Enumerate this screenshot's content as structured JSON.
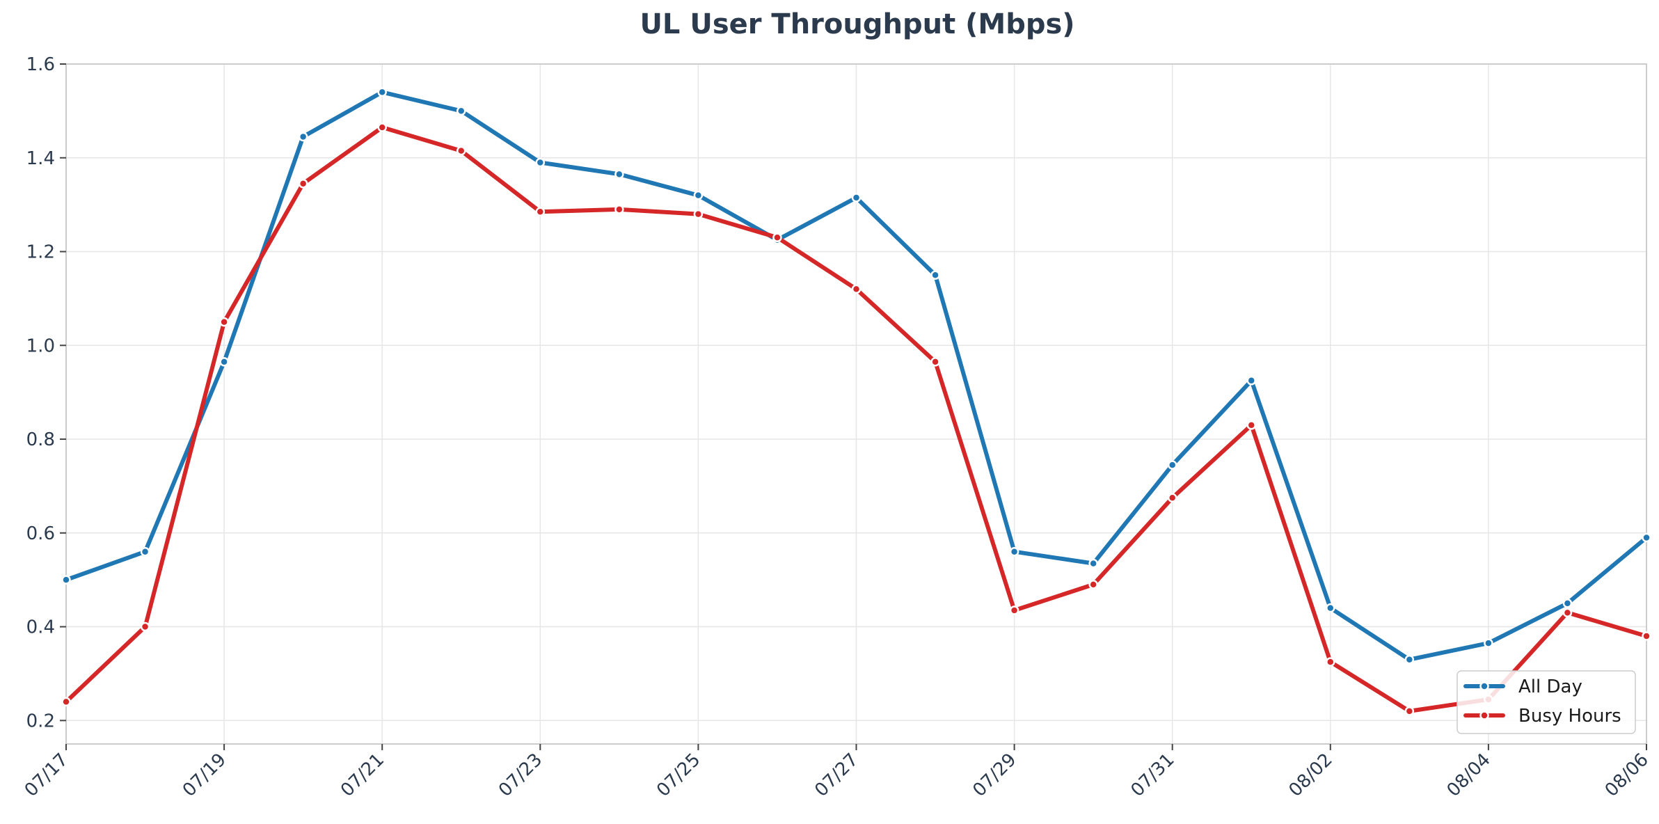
{
  "chart_data": {
    "type": "line",
    "title": "UL User Throughput (Mbps)",
    "xlabel": "",
    "ylabel": "",
    "x": [
      "07/17",
      "07/18",
      "07/19",
      "07/20",
      "07/21",
      "07/22",
      "07/23",
      "07/24",
      "07/25",
      "07/26",
      "07/27",
      "07/28",
      "07/29",
      "07/30",
      "07/31",
      "08/01",
      "08/02",
      "08/03",
      "08/04",
      "08/05",
      "08/06"
    ],
    "x_tick_labels": [
      "07/17",
      "07/19",
      "07/21",
      "07/23",
      "07/25",
      "07/27",
      "07/29",
      "07/31",
      "08/02",
      "08/04",
      "08/06"
    ],
    "ylim": [
      0.15,
      1.6
    ],
    "y_ticks": [
      0.2,
      0.4,
      0.6,
      0.8,
      1.0,
      1.2,
      1.4,
      1.6
    ],
    "y_tick_labels": [
      "0.2",
      "0.4",
      "0.6",
      "0.8",
      "1.0",
      "1.2",
      "1.4",
      "1.6"
    ],
    "grid": true,
    "legend_position": "bottom-right",
    "series": [
      {
        "name": "All Day",
        "color": "#1f77b4",
        "values": [
          0.5,
          0.56,
          0.965,
          1.445,
          1.54,
          1.5,
          1.39,
          1.365,
          1.32,
          1.225,
          1.315,
          1.15,
          0.56,
          0.535,
          0.745,
          0.925,
          0.44,
          0.33,
          0.365,
          0.45,
          0.59
        ]
      },
      {
        "name": "Busy Hours",
        "color": "#d62728",
        "values": [
          0.24,
          0.4,
          1.05,
          1.345,
          1.465,
          1.415,
          1.285,
          1.29,
          1.28,
          1.23,
          1.12,
          0.965,
          0.435,
          0.49,
          0.675,
          0.83,
          0.325,
          0.22,
          0.245,
          0.43,
          0.38
        ]
      }
    ]
  }
}
